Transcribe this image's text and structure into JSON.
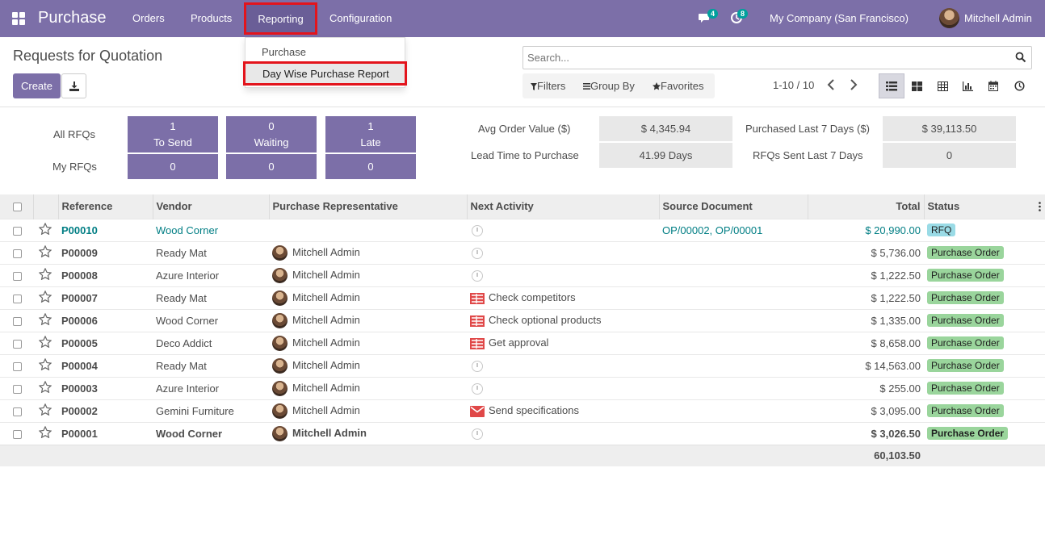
{
  "navbar": {
    "brand": "Purchase",
    "menu": [
      "Orders",
      "Products",
      "Reporting",
      "Configuration"
    ],
    "messages_badge": "4",
    "activities_badge": "8",
    "company": "My Company (San Francisco)",
    "user": "Mitchell Admin"
  },
  "dropdown": {
    "items": [
      "Purchase",
      "Day Wise Purchase Report"
    ]
  },
  "control_panel": {
    "title": "Requests for Quotation",
    "create_label": "Create",
    "search_placeholder": "Search...",
    "filters_label": "Filters",
    "groupby_label": "Group By",
    "favorites_label": "Favorites",
    "pager": "1-10 / 10"
  },
  "dashboard": {
    "all_rfqs_label": "All RFQs",
    "my_rfqs_label": "My RFQs",
    "tiles": [
      {
        "count": "1",
        "label": "To Send",
        "my": "0"
      },
      {
        "count": "0",
        "label": "Waiting",
        "my": "0"
      },
      {
        "count": "1",
        "label": "Late",
        "my": "0"
      }
    ],
    "stats": {
      "avg_order_label": "Avg Order Value ($)",
      "avg_order_value": "$ 4,345.94",
      "lead_time_label": "Lead Time to Purchase",
      "lead_time_value": "41.99  Days",
      "purchased_label": "Purchased Last 7 Days ($)",
      "purchased_value": "$ 39,113.50",
      "rfqs_sent_label": "RFQs Sent Last 7 Days",
      "rfqs_sent_value": "0"
    }
  },
  "table": {
    "columns": [
      "Reference",
      "Vendor",
      "Purchase Representative",
      "Next Activity",
      "Source Document",
      "Total",
      "Status"
    ],
    "rows": [
      {
        "ref": "P00010",
        "vendor": "Wood Corner",
        "rep": "",
        "activity": "",
        "activity_icon": "clock-icon",
        "source": "OP/00002, OP/00001",
        "total": "$ 20,990.00",
        "status": "RFQ"
      },
      {
        "ref": "P00009",
        "vendor": "Ready Mat",
        "rep": "Mitchell Admin",
        "activity": "",
        "activity_icon": "clock-icon",
        "source": "",
        "total": "$ 5,736.00",
        "status": "Purchase Order"
      },
      {
        "ref": "P00008",
        "vendor": "Azure Interior",
        "rep": "Mitchell Admin",
        "activity": "",
        "activity_icon": "clock-icon",
        "source": "",
        "total": "$ 1,222.50",
        "status": "Purchase Order"
      },
      {
        "ref": "P00007",
        "vendor": "Ready Mat",
        "rep": "Mitchell Admin",
        "activity": "Check competitors",
        "activity_icon": "tasks-icon",
        "source": "",
        "total": "$ 1,222.50",
        "status": "Purchase Order"
      },
      {
        "ref": "P00006",
        "vendor": "Wood Corner",
        "rep": "Mitchell Admin",
        "activity": "Check optional products",
        "activity_icon": "tasks-icon",
        "source": "",
        "total": "$ 1,335.00",
        "status": "Purchase Order"
      },
      {
        "ref": "P00005",
        "vendor": "Deco Addict",
        "rep": "Mitchell Admin",
        "activity": "Get approval",
        "activity_icon": "tasks-icon",
        "source": "",
        "total": "$ 8,658.00",
        "status": "Purchase Order"
      },
      {
        "ref": "P00004",
        "vendor": "Ready Mat",
        "rep": "Mitchell Admin",
        "activity": "",
        "activity_icon": "clock-icon",
        "source": "",
        "total": "$ 14,563.00",
        "status": "Purchase Order"
      },
      {
        "ref": "P00003",
        "vendor": "Azure Interior",
        "rep": "Mitchell Admin",
        "activity": "",
        "activity_icon": "clock-icon",
        "source": "",
        "total": "$ 255.00",
        "status": "Purchase Order"
      },
      {
        "ref": "P00002",
        "vendor": "Gemini Furniture",
        "rep": "Mitchell Admin",
        "activity": "Send specifications",
        "activity_icon": "envelope-icon",
        "source": "",
        "total": "$ 3,095.00",
        "status": "Purchase Order"
      },
      {
        "ref": "P00001",
        "vendor": "Wood Corner",
        "rep": "Mitchell Admin",
        "activity": "",
        "activity_icon": "clock-icon",
        "source": "",
        "total": "$ 3,026.50",
        "status": "Purchase Order"
      }
    ],
    "sum_total": "60,103.50"
  },
  "colors": {
    "brand": "#7c6fa8",
    "link": "#017e84",
    "highlight_border": "#e3141c",
    "status_rfq": "#9adbe6",
    "status_po": "#9ad59c"
  }
}
